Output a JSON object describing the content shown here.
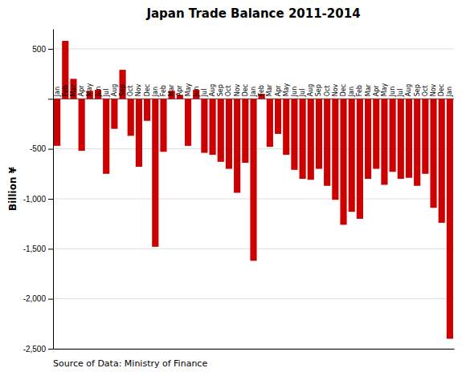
{
  "chart_data": {
    "type": "bar",
    "title": "Japan  Trade Balance 2011-2014",
    "ylabel": "Billion ¥",
    "annotation": "Source of Data: Ministry of Finance",
    "categories": [
      "Jan",
      "Feb",
      "Mar",
      "Apr",
      "May",
      "Jun",
      "Jul",
      "Aug",
      "Sep",
      "Oct",
      "Nov",
      "Dec",
      "Jan",
      "Feb",
      "Mar",
      "Apr",
      "May",
      "Jun",
      "Jul",
      "Aug",
      "Sep",
      "Oct",
      "Nov",
      "Dec",
      "Jan",
      "Feb",
      "Mar",
      "Apr",
      "May",
      "Jun",
      "Jul",
      "Aug",
      "Sep",
      "Oct",
      "Nov",
      "Dec",
      "Jan",
      "Feb",
      "Mar",
      "Apr",
      "May",
      "Jun",
      "Jul",
      "Aug",
      "Sep",
      "Oct",
      "Nov",
      "Dec",
      "Jan"
    ],
    "values": [
      -470,
      580,
      200,
      -520,
      80,
      90,
      -750,
      -300,
      290,
      -370,
      -680,
      -220,
      -1480,
      -530,
      80,
      40,
      -470,
      90,
      -540,
      -560,
      -630,
      -700,
      -940,
      -640,
      -1620,
      50,
      -480,
      -350,
      -560,
      -710,
      -800,
      -810,
      -700,
      -870,
      -1010,
      -1260,
      -1130,
      -1200,
      -800,
      -700,
      -860,
      -730,
      -800,
      -790,
      -870,
      -750,
      -1090,
      -1240,
      -2400
    ],
    "color": "#cc0000",
    "ylim": [
      -2500,
      700
    ],
    "yticks": [
      {
        "value": -2500,
        "label": "-2,500"
      },
      {
        "value": -2000,
        "label": "-2,000"
      },
      {
        "value": -1500,
        "label": "-1,500"
      },
      {
        "value": -1000,
        "label": "-1,000"
      },
      {
        "value": -500,
        "label": "-500"
      },
      {
        "value": 0,
        "label": null
      },
      500
    ],
    "grid": true
  }
}
